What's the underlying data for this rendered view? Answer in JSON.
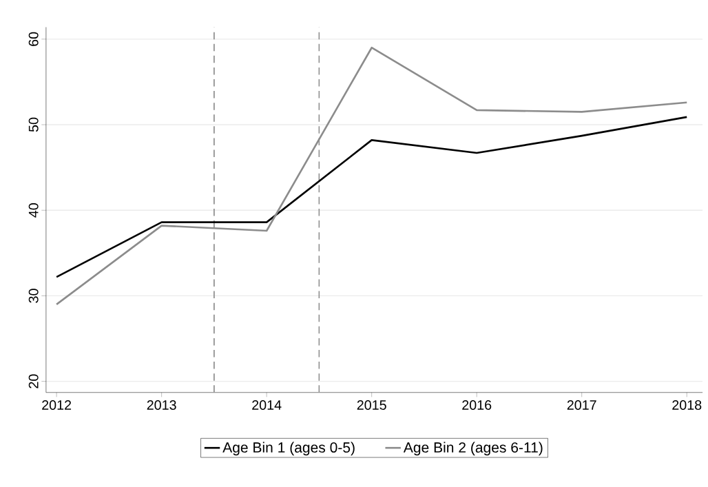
{
  "chart_data": {
    "type": "line",
    "x": [
      2012,
      2013,
      2014,
      2015,
      2016,
      2017,
      2018
    ],
    "series": [
      {
        "name": "Age Bin 1 (ages 0-5)",
        "color": "#000000",
        "values": [
          32.2,
          38.6,
          38.6,
          48.2,
          46.7,
          48.7,
          50.9
        ]
      },
      {
        "name": "Age Bin 2 (ages 6-11)",
        "color": "#8c8c8c",
        "values": [
          29.0,
          38.2,
          37.6,
          59.0,
          51.7,
          51.5,
          52.6
        ]
      }
    ],
    "xlim": [
      2011.9,
      2018.15
    ],
    "ylim": [
      18.7,
      61.4
    ],
    "xticks": [
      2012,
      2013,
      2014,
      2015,
      2016,
      2017,
      2018
    ],
    "yticks": [
      20,
      30,
      40,
      50,
      60
    ],
    "ref_lines": [
      {
        "axis": "x",
        "value": 2013.5,
        "color": "#8c8c8c",
        "line_style": "dashed"
      },
      {
        "axis": "x",
        "value": 2014.5,
        "color": "#8c8c8c",
        "line_style": "dashed"
      }
    ],
    "grid": "y",
    "legend": "bottom"
  }
}
